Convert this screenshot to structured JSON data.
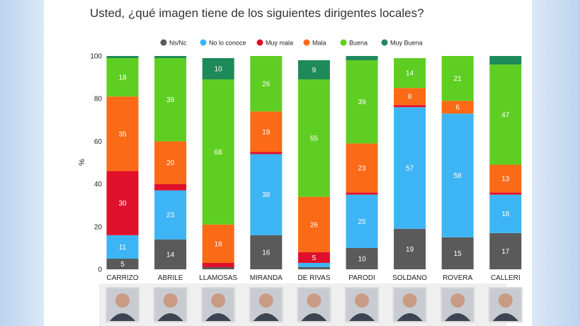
{
  "title": "Usted, ¿qué imagen tiene de los siguientes dirigentes locales?",
  "chart_data": {
    "type": "bar",
    "stacked": true,
    "title": "Usted, ¿qué imagen tiene de los siguientes dirigentes locales?",
    "xlabel": "",
    "ylabel": "%",
    "ylim": [
      0,
      100
    ],
    "yticks": [
      0,
      20,
      40,
      60,
      80,
      100
    ],
    "legend_position": "top",
    "categories": [
      "CARRIZO",
      "ABRILE",
      "LLAMOSAS",
      "MIRANDA",
      "DE RIVAS",
      "PARODI",
      "SOLDANO",
      "ROVERA",
      "CALLERI"
    ],
    "series": [
      {
        "name": "Ns/Nc",
        "color": "#5a5a5a",
        "values": [
          5,
          14,
          1,
          16,
          1,
          10,
          19,
          15,
          17
        ]
      },
      {
        "name": "No lo conoce",
        "color": "#3db5f5",
        "values": [
          11,
          23,
          0,
          38,
          2,
          25,
          57,
          58,
          18
        ]
      },
      {
        "name": "Muy mala",
        "color": "#e0102c",
        "values": [
          30,
          3,
          2,
          1,
          5,
          1,
          1,
          0,
          1
        ]
      },
      {
        "name": "Mala",
        "color": "#fb6a16",
        "values": [
          35,
          20,
          18,
          19,
          26,
          23,
          8,
          6,
          13
        ]
      },
      {
        "name": "Buena",
        "color": "#5fce22",
        "values": [
          18,
          39,
          68,
          26,
          55,
          39,
          14,
          21,
          47
        ]
      },
      {
        "name": "Muy Buena",
        "color": "#1e8a59",
        "values": [
          1,
          1,
          10,
          0,
          9,
          2,
          0,
          0,
          4
        ]
      }
    ],
    "data_labels": [
      [
        5,
        11,
        30,
        35,
        18,
        null
      ],
      [
        14,
        23,
        null,
        20,
        39,
        null
      ],
      [
        null,
        null,
        null,
        18,
        68,
        10
      ],
      [
        16,
        38,
        null,
        19,
        26,
        null
      ],
      [
        null,
        null,
        5,
        26,
        55,
        9
      ],
      [
        10,
        25,
        null,
        23,
        39,
        null
      ],
      [
        19,
        57,
        null,
        8,
        14,
        null
      ],
      [
        15,
        58,
        null,
        6,
        21,
        null
      ],
      [
        17,
        18,
        null,
        13,
        47,
        null
      ]
    ]
  }
}
